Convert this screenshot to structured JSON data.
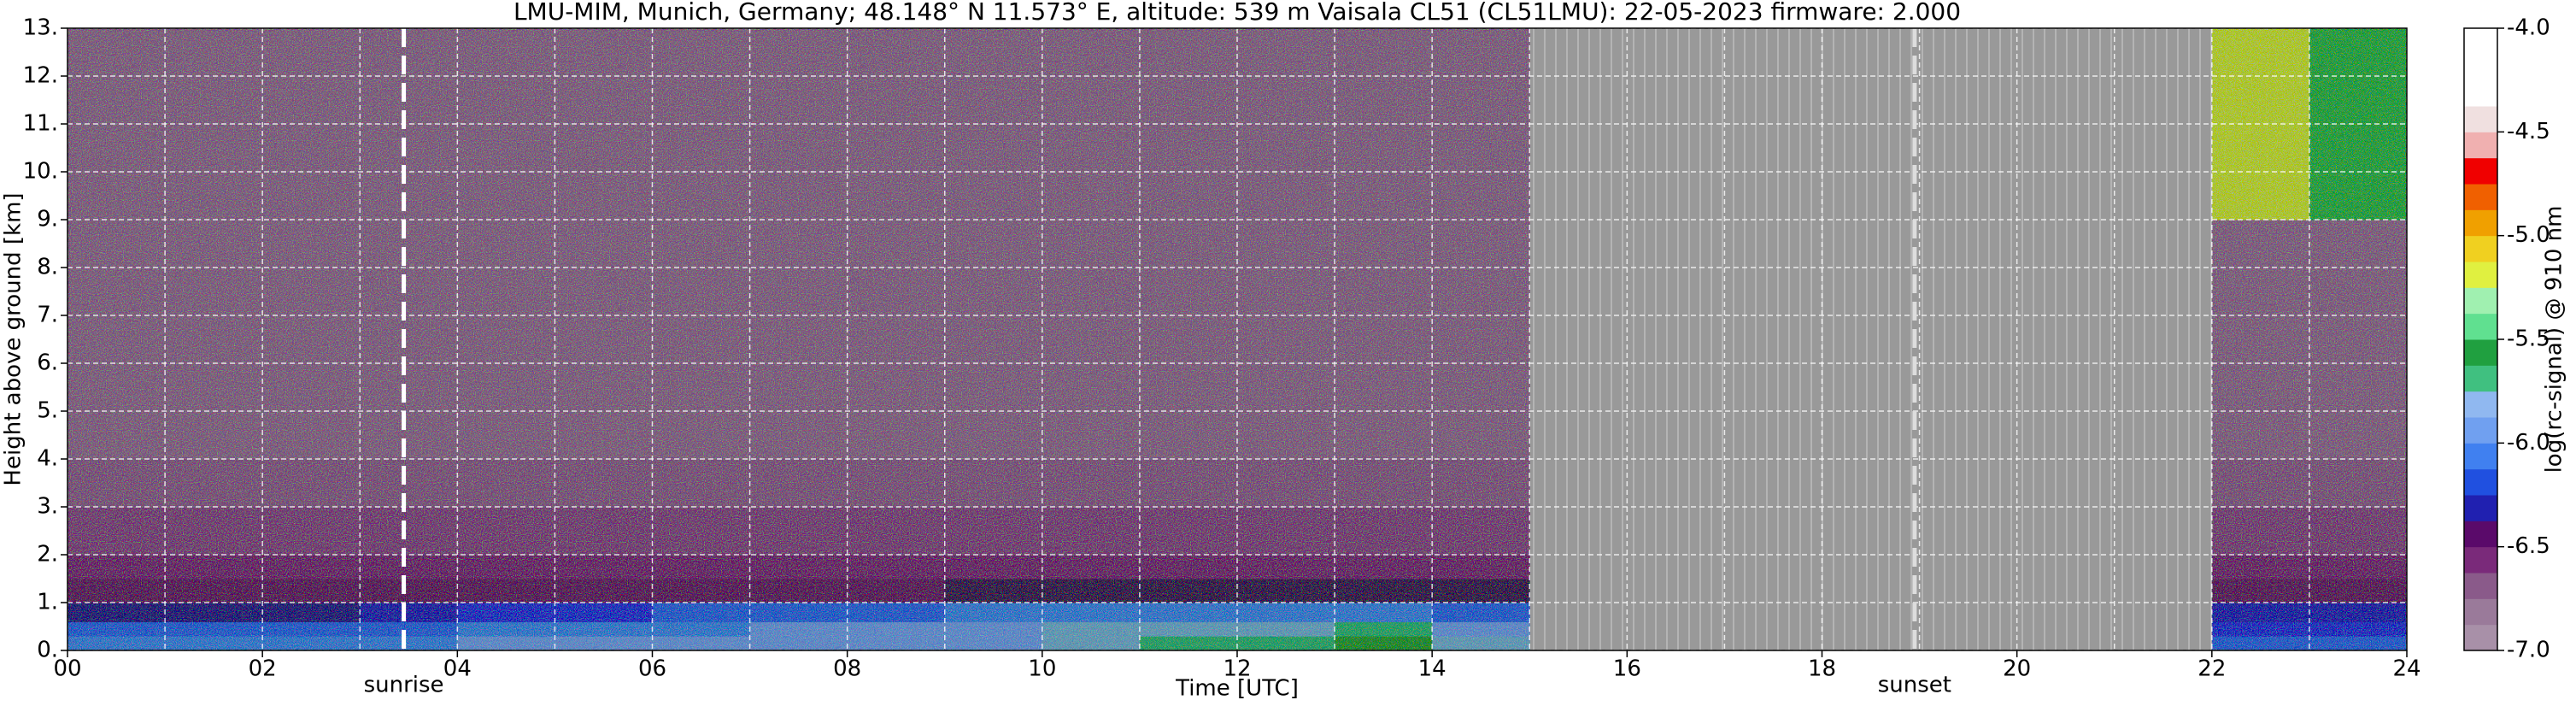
{
  "chart_data": {
    "type": "heatmap",
    "title": "LMU-MIM, Munich, Germany; 48.148° N 11.573° E, altitude: 539 m    Vaisala CL51 (CL51LMU): 22-05-2023    firmware: 2.000",
    "x_label": "Time [UTC]",
    "y_label": "Height above ground [km]",
    "colorbar_label": "log(rc-signal) @ 910 nm",
    "x": [
      0,
      1,
      2,
      3,
      4,
      5,
      6,
      7,
      8,
      9,
      10,
      11,
      12,
      13,
      14,
      15,
      16,
      17,
      18,
      19,
      20,
      21,
      22,
      23,
      24
    ],
    "y": [
      0,
      0.3,
      0.6,
      1,
      1.5,
      2,
      3,
      4,
      6,
      9,
      13
    ],
    "values": [
      [
        -6.0,
        -6.0,
        -6.0,
        -6.0,
        -5.9,
        -5.9,
        -5.9,
        -5.9,
        -5.9,
        -5.9,
        -5.8,
        -5.7,
        -5.7,
        -5.6,
        -5.8,
        null,
        null,
        null,
        null,
        null,
        null,
        null,
        -6.1,
        -6.1
      ],
      [
        -6.1,
        -6.1,
        -6.1,
        -6.1,
        -6.0,
        -6.0,
        -6.0,
        -5.9,
        -5.9,
        -5.9,
        -5.8,
        -5.8,
        -5.8,
        -5.7,
        -5.9,
        null,
        null,
        null,
        null,
        null,
        null,
        null,
        -6.2,
        -6.2
      ],
      [
        -6.4,
        -6.4,
        -6.4,
        -6.3,
        -6.2,
        -6.2,
        -6.1,
        -6.1,
        -6.1,
        -6.0,
        -6.0,
        -6.0,
        -6.0,
        -6.0,
        -6.1,
        null,
        null,
        null,
        null,
        null,
        null,
        null,
        -6.3,
        -6.3
      ],
      [
        -6.6,
        -6.6,
        -6.6,
        -6.6,
        -6.6,
        -6.6,
        -6.6,
        -6.6,
        -6.6,
        -6.5,
        -6.5,
        -6.5,
        -6.5,
        -6.5,
        -6.5,
        null,
        null,
        null,
        null,
        null,
        null,
        null,
        -6.6,
        -6.6
      ],
      [
        -6.7,
        -6.7,
        -6.7,
        -6.7,
        -6.7,
        -6.7,
        -6.7,
        -6.7,
        -6.7,
        -6.7,
        -6.7,
        -6.7,
        -6.7,
        -6.7,
        -6.7,
        null,
        null,
        null,
        null,
        null,
        null,
        null,
        -6.7,
        -6.7
      ],
      [
        -6.8,
        -6.8,
        -6.8,
        -6.8,
        -6.8,
        -6.8,
        -6.8,
        -6.8,
        -6.8,
        -6.8,
        -6.8,
        -6.8,
        -6.8,
        -6.8,
        -6.8,
        null,
        null,
        null,
        null,
        null,
        null,
        null,
        -6.8,
        -6.8
      ],
      [
        -6.85,
        -6.85,
        -6.85,
        -6.85,
        -6.85,
        -6.85,
        -6.85,
        -6.85,
        -6.85,
        -6.85,
        -6.85,
        -6.85,
        -6.85,
        -6.85,
        -6.85,
        null,
        null,
        null,
        null,
        null,
        null,
        null,
        -6.85,
        -6.85
      ],
      [
        -6.9,
        -6.9,
        -6.9,
        -6.9,
        -6.9,
        -6.9,
        -6.9,
        -6.9,
        -6.9,
        -6.9,
        -6.9,
        -6.9,
        -6.9,
        -6.9,
        -6.9,
        null,
        null,
        null,
        null,
        null,
        null,
        null,
        -6.9,
        -6.9
      ],
      [
        -6.9,
        -6.9,
        -6.9,
        -6.9,
        -6.9,
        -6.9,
        -6.9,
        -6.9,
        -6.9,
        -6.9,
        -6.9,
        -6.9,
        -6.9,
        -6.9,
        -6.9,
        null,
        null,
        null,
        null,
        null,
        null,
        null,
        -6.9,
        -6.9
      ],
      [
        -6.9,
        -6.9,
        -6.9,
        -6.9,
        -6.9,
        -6.9,
        -6.9,
        -6.9,
        -6.9,
        -6.9,
        -6.9,
        -6.9,
        -6.9,
        -6.9,
        -6.9,
        null,
        null,
        null,
        null,
        null,
        null,
        null,
        -5.2,
        -5.5
      ]
    ],
    "colormap": [
      "#a890a8",
      "#9a7a9a",
      "#8a5a8a",
      "#7a2a7a",
      "#5a0a6a",
      "#2020b0",
      "#2050e0",
      "#4080f0",
      "#70a0f0",
      "#90b8f0",
      "#40c080",
      "#20a040",
      "#60e090",
      "#a0f0b0",
      "#e0f040",
      "#f0d020",
      "#f0a000",
      "#f06000",
      "#f00000",
      "#f0b0b0",
      "#f0e0e0",
      "#ffffff",
      "#ffffff",
      "#ffffff"
    ],
    "missing_color": "#9a9a9a",
    "xlim": [
      0,
      24
    ],
    "ylim": [
      0,
      13
    ],
    "clim": [
      -7,
      -4
    ],
    "xticks": [
      {
        "value": 0,
        "label": "00"
      },
      {
        "value": 2,
        "label": "02"
      },
      {
        "value": 4,
        "label": "04"
      },
      {
        "value": 6,
        "label": "06"
      },
      {
        "value": 8,
        "label": "08"
      },
      {
        "value": 10,
        "label": "10"
      },
      {
        "value": 12,
        "label": "12"
      },
      {
        "value": 14,
        "label": "14"
      },
      {
        "value": 16,
        "label": "16"
      },
      {
        "value": 18,
        "label": "18"
      },
      {
        "value": 20,
        "label": "20"
      },
      {
        "value": 22,
        "label": "22"
      },
      {
        "value": 24,
        "label": "24"
      }
    ],
    "xminor": [
      1,
      3,
      5,
      7,
      9,
      11,
      13,
      15,
      17,
      19,
      21,
      23
    ],
    "yticks": [
      {
        "value": 0,
        "label": "0."
      },
      {
        "value": 1,
        "label": "1."
      },
      {
        "value": 2,
        "label": "2."
      },
      {
        "value": 3,
        "label": "3."
      },
      {
        "value": 4,
        "label": "4."
      },
      {
        "value": 5,
        "label": "5."
      },
      {
        "value": 6,
        "label": "6."
      },
      {
        "value": 7,
        "label": "7."
      },
      {
        "value": 8,
        "label": "8."
      },
      {
        "value": 9,
        "label": "9."
      },
      {
        "value": 10,
        "label": "10."
      },
      {
        "value": 11,
        "label": "11."
      },
      {
        "value": 12,
        "label": "12."
      },
      {
        "value": 13,
        "label": "13."
      }
    ],
    "cticks": [
      {
        "value": -7,
        "label": "-7.0"
      },
      {
        "value": -6.5,
        "label": "-6.5"
      },
      {
        "value": -6,
        "label": "-6.0"
      },
      {
        "value": -5.5,
        "label": "-5.5"
      },
      {
        "value": -5,
        "label": "-5.0"
      },
      {
        "value": -4.5,
        "label": "-4.5"
      },
      {
        "value": -4,
        "label": "-4.0"
      }
    ],
    "grid": true,
    "annotations": [
      {
        "x": 3.45,
        "label": "sunrise"
      },
      {
        "x": 18.95,
        "label": "sunset"
      }
    ]
  }
}
